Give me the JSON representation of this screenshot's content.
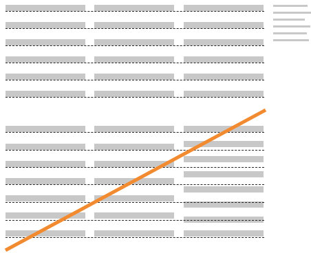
{
  "colors": {
    "placeholder_bar": "#c8c8c8",
    "dashed_rule": "#222222",
    "diagonal_stroke": "#f28a30",
    "background": "#ffffff"
  },
  "description_free": true
}
